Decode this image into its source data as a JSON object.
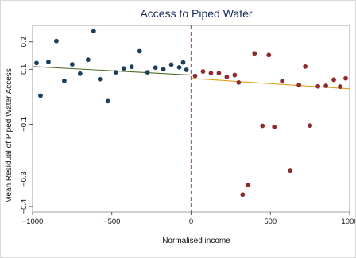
{
  "chart_data": {
    "type": "scatter",
    "title": "Access to Piped Water",
    "xlabel": "Normalised income",
    "ylabel": "Mean Residual of Piped Water Access",
    "xlim": [
      -1000,
      1000
    ],
    "ylim": [
      -0.42,
      0.26
    ],
    "xticks": [
      -1000,
      -500,
      0,
      500,
      1000
    ],
    "xtick_labels": [
      "−1000",
      "−500",
      "0",
      "500",
      "1000"
    ],
    "yticks": [
      -0.4,
      -0.3,
      -0.1,
      0.1,
      0.2
    ],
    "ytick_labels": [
      "−0.4",
      "−0.3",
      "−0.1",
      "0.1",
      "0.2"
    ],
    "grid": false,
    "cutoff_x": 0,
    "colors": {
      "left_points": "#1b3f5e",
      "right_points": "#8c2a2e",
      "left_fit": "#4f6b2a",
      "right_fit": "#e0a020",
      "cutoff": "#c0507a"
    },
    "series": [
      {
        "points": [
          [
            -975,
            0.123
          ],
          [
            -950,
            0.004
          ],
          [
            -900,
            0.127
          ],
          [
            -850,
            0.203
          ],
          [
            -800,
            0.058
          ],
          [
            -750,
            0.118
          ],
          [
            -700,
            0.084
          ],
          [
            -650,
            0.135
          ],
          [
            -615,
            0.239
          ],
          [
            -575,
            0.064
          ],
          [
            -525,
            -0.016
          ],
          [
            -475,
            0.089
          ],
          [
            -425,
            0.103
          ],
          [
            -375,
            0.109
          ],
          [
            -325,
            0.166
          ],
          [
            -275,
            0.089
          ],
          [
            -225,
            0.106
          ],
          [
            -175,
            0.1
          ],
          [
            -125,
            0.117
          ],
          [
            -75,
            0.107
          ],
          [
            -50,
            0.125
          ],
          [
            -30,
            0.098
          ]
        ]
      },
      {
        "points": [
          [
            25,
            0.076
          ],
          [
            75,
            0.092
          ],
          [
            125,
            0.086
          ],
          [
            175,
            0.086
          ],
          [
            225,
            0.072
          ],
          [
            275,
            0.079
          ],
          [
            300,
            0.052
          ],
          [
            325,
            -0.357
          ],
          [
            360,
            -0.322
          ],
          [
            400,
            0.158
          ],
          [
            450,
            -0.106
          ],
          [
            490,
            0.152
          ],
          [
            525,
            -0.11
          ],
          [
            575,
            0.057
          ],
          [
            625,
            -0.27
          ],
          [
            680,
            0.043
          ],
          [
            720,
            0.11
          ],
          [
            750,
            -0.105
          ],
          [
            800,
            0.038
          ],
          [
            850,
            0.04
          ],
          [
            900,
            0.062
          ],
          [
            940,
            0.037
          ],
          [
            975,
            0.067
          ]
        ]
      }
    ],
    "fit_lines": [
      {
        "x": [
          -1000,
          0
        ],
        "y": [
          0.11,
          0.079
        ]
      },
      {
        "x": [
          0,
          1000
        ],
        "y": [
          0.067,
          0.029
        ]
      }
    ]
  }
}
